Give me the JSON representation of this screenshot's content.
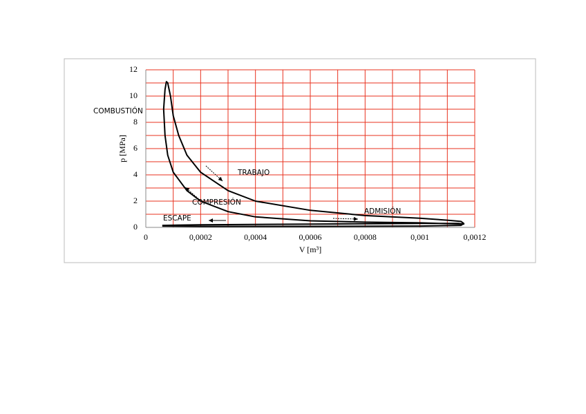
{
  "chart_data": {
    "type": "line",
    "xlabel": "V [m³]",
    "ylabel": "p [MPa]",
    "xlim": [
      0,
      0.0012
    ],
    "ylim": [
      0,
      12
    ],
    "xticks": [
      0,
      {
        "value": 0.0002,
        "label": "0,0002"
      },
      {
        "value": 0.0004,
        "label": "0,0004"
      },
      {
        "value": 0.0006,
        "label": "0,0006"
      },
      {
        "value": 0.0008,
        "label": "0,0008"
      },
      {
        "value": 0.001,
        "label": "0,001"
      },
      {
        "value": 0.0012,
        "label": "0,0012"
      }
    ],
    "yticks": [
      0,
      2,
      4,
      6,
      8,
      10,
      12
    ],
    "minor_xticks": [
      0.0001,
      0.0003,
      0.0005,
      0.0007,
      0.0009,
      0.0011
    ],
    "minor_yticks": [
      1,
      3,
      5,
      7,
      9,
      11
    ],
    "grid": true,
    "grid_color": "#e8321e",
    "series": [
      {
        "color": "#000000",
        "x": [
          6e-05,
          0.0002,
          0.0006,
          0.001,
          0.00114,
          0.00116,
          0.001,
          0.0008,
          0.0006,
          0.0004,
          0.0003,
          0.0002,
          0.00015,
          0.0001,
          8e-05,
          7e-05,
          6.5e-05,
          7e-05,
          7.5e-05,
          8e-05,
          9e-05,
          0.0001,
          0.00012,
          0.00015,
          0.0002,
          0.0003,
          0.0004,
          0.0006,
          0.0008,
          0.001,
          0.0011,
          0.00115,
          0.00116,
          0.00115,
          0.001,
          0.0006,
          0.0002,
          6e-05
        ],
        "values": [
          0.15,
          0.2,
          0.25,
          0.3,
          0.3,
          0.25,
          0.35,
          0.4,
          0.5,
          0.8,
          1.2,
          2.0,
          2.8,
          4.2,
          5.5,
          7,
          9,
          10.5,
          11.1,
          11,
          10,
          8.5,
          7,
          5.5,
          4.2,
          2.8,
          2.0,
          1.3,
          0.9,
          0.7,
          0.55,
          0.45,
          0.3,
          0.15,
          0.1,
          0.08,
          0.08,
          0.1
        ]
      }
    ],
    "annotations": [
      "COMBUSTIÓN",
      "TRABAJO",
      "COMPRESIÓN",
      "ADMISIÓN",
      "ESCAPE"
    ]
  }
}
